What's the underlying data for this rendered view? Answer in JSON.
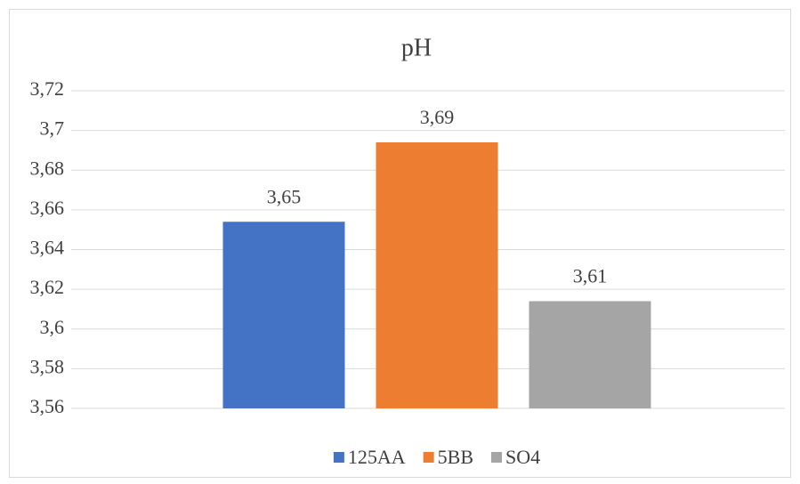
{
  "chart_data": {
    "type": "bar",
    "title": "pH",
    "categories": [
      null
    ],
    "series": [
      {
        "name": "125AA",
        "color": "#4472c4",
        "values": [
          3.654
        ],
        "value_labels": [
          "3,65"
        ]
      },
      {
        "name": "5BB",
        "color": "#ed7d31",
        "values": [
          3.694
        ],
        "value_labels": [
          "3,69"
        ]
      },
      {
        "name": "SO4",
        "color": "#a5a5a5",
        "values": [
          3.614
        ],
        "value_labels": [
          "3,61"
        ]
      }
    ],
    "ylim": [
      3.56,
      3.72
    ],
    "yticks": [
      {
        "value": 3.56,
        "label": "3,56"
      },
      {
        "value": 3.58,
        "label": "3,58"
      },
      {
        "value": 3.6,
        "label": "3,6"
      },
      {
        "value": 3.62,
        "label": "3,62"
      },
      {
        "value": 3.64,
        "label": "3,64"
      },
      {
        "value": 3.66,
        "label": "3,66"
      },
      {
        "value": 3.68,
        "label": "3,68"
      },
      {
        "value": 3.7,
        "label": "3,7"
      },
      {
        "value": 3.72,
        "label": "3,72"
      }
    ],
    "grid": true,
    "legend": "bottom"
  }
}
